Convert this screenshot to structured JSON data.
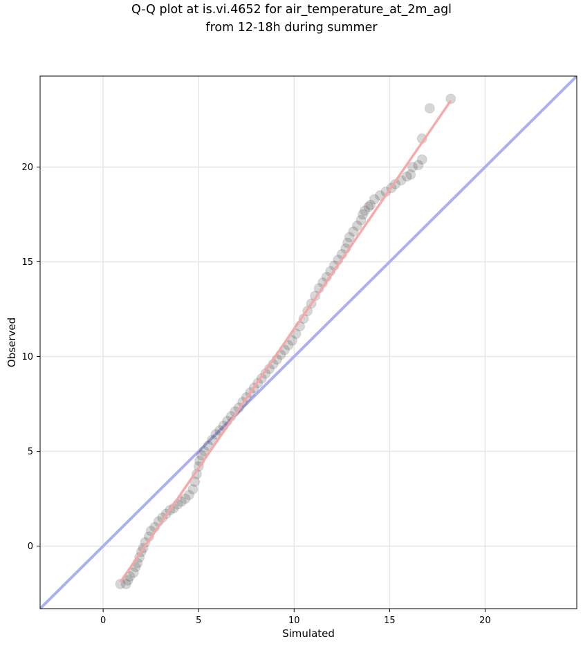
{
  "chart_data": {
    "type": "scatter",
    "title_line1": "Q-Q plot at is.vi.4652 for air_temperature_at_2m_agl",
    "title_line2": "from 12-18h during summer",
    "xlabel": "Simulated",
    "ylabel": "Observed",
    "xlim": [
      -3.3,
      24.8
    ],
    "ylim": [
      -3.3,
      24.8
    ],
    "xticks": [
      0,
      5,
      10,
      15,
      20
    ],
    "yticks": [
      0,
      5,
      10,
      15,
      20
    ],
    "grid": true,
    "reference_line": {
      "name": "1:1 line",
      "color": "#aab0f2",
      "from": [
        -3.3,
        -3.3
      ],
      "to": [
        24.8,
        24.8
      ]
    },
    "fit_line": {
      "color": "#f4a6a6",
      "from": [
        0.9,
        -1.9
      ],
      "to": [
        18.2,
        23.5
      ]
    },
    "marker_color": "#444444",
    "points": [
      [
        0.9,
        -2.0
      ],
      [
        1.2,
        -2.0
      ],
      [
        1.3,
        -1.8
      ],
      [
        1.4,
        -1.6
      ],
      [
        1.6,
        -1.4
      ],
      [
        1.7,
        -1.1
      ],
      [
        1.8,
        -0.9
      ],
      [
        1.9,
        -0.6
      ],
      [
        2.0,
        -0.3
      ],
      [
        2.1,
        -0.1
      ],
      [
        2.2,
        0.2
      ],
      [
        2.4,
        0.5
      ],
      [
        2.5,
        0.8
      ],
      [
        2.7,
        1.0
      ],
      [
        2.9,
        1.3
      ],
      [
        3.1,
        1.5
      ],
      [
        3.3,
        1.7
      ],
      [
        3.5,
        1.9
      ],
      [
        3.7,
        2.0
      ],
      [
        3.9,
        2.2
      ],
      [
        4.1,
        2.35
      ],
      [
        4.3,
        2.5
      ],
      [
        4.5,
        2.7
      ],
      [
        4.7,
        3.0
      ],
      [
        4.8,
        3.4
      ],
      [
        4.9,
        3.8
      ],
      [
        5.0,
        4.2
      ],
      [
        5.05,
        4.5
      ],
      [
        5.15,
        4.8
      ],
      [
        5.3,
        5.0
      ],
      [
        5.5,
        5.3
      ],
      [
        5.7,
        5.6
      ],
      [
        5.9,
        5.9
      ],
      [
        6.1,
        6.1
      ],
      [
        6.3,
        6.35
      ],
      [
        6.5,
        6.6
      ],
      [
        6.7,
        6.85
      ],
      [
        6.9,
        7.1
      ],
      [
        7.1,
        7.3
      ],
      [
        7.3,
        7.6
      ],
      [
        7.5,
        7.85
      ],
      [
        7.7,
        8.1
      ],
      [
        7.9,
        8.35
      ],
      [
        8.1,
        8.6
      ],
      [
        8.3,
        8.85
      ],
      [
        8.5,
        9.1
      ],
      [
        8.7,
        9.35
      ],
      [
        8.9,
        9.6
      ],
      [
        9.1,
        9.85
      ],
      [
        9.3,
        10.1
      ],
      [
        9.5,
        10.35
      ],
      [
        9.7,
        10.6
      ],
      [
        9.9,
        10.85
      ],
      [
        10.1,
        11.2
      ],
      [
        10.3,
        11.6
      ],
      [
        10.5,
        12.0
      ],
      [
        10.7,
        12.4
      ],
      [
        10.9,
        12.8
      ],
      [
        11.1,
        13.2
      ],
      [
        11.3,
        13.6
      ],
      [
        11.5,
        13.9
      ],
      [
        11.7,
        14.2
      ],
      [
        11.9,
        14.5
      ],
      [
        12.1,
        14.8
      ],
      [
        12.3,
        15.1
      ],
      [
        12.5,
        15.4
      ],
      [
        12.7,
        15.7
      ],
      [
        12.8,
        16.0
      ],
      [
        12.9,
        16.3
      ],
      [
        13.1,
        16.6
      ],
      [
        13.3,
        16.9
      ],
      [
        13.5,
        17.2
      ],
      [
        13.6,
        17.5
      ],
      [
        13.7,
        17.7
      ],
      [
        13.9,
        17.9
      ],
      [
        14.0,
        18.0
      ],
      [
        14.2,
        18.3
      ],
      [
        14.5,
        18.5
      ],
      [
        14.8,
        18.7
      ],
      [
        15.1,
        18.9
      ],
      [
        15.3,
        19.1
      ],
      [
        15.6,
        19.3
      ],
      [
        15.9,
        19.5
      ],
      [
        16.1,
        19.6
      ],
      [
        16.2,
        20.0
      ],
      [
        16.5,
        20.1
      ],
      [
        16.7,
        20.4
      ],
      [
        16.7,
        21.5
      ],
      [
        17.1,
        23.1
      ],
      [
        18.2,
        23.6
      ]
    ]
  }
}
